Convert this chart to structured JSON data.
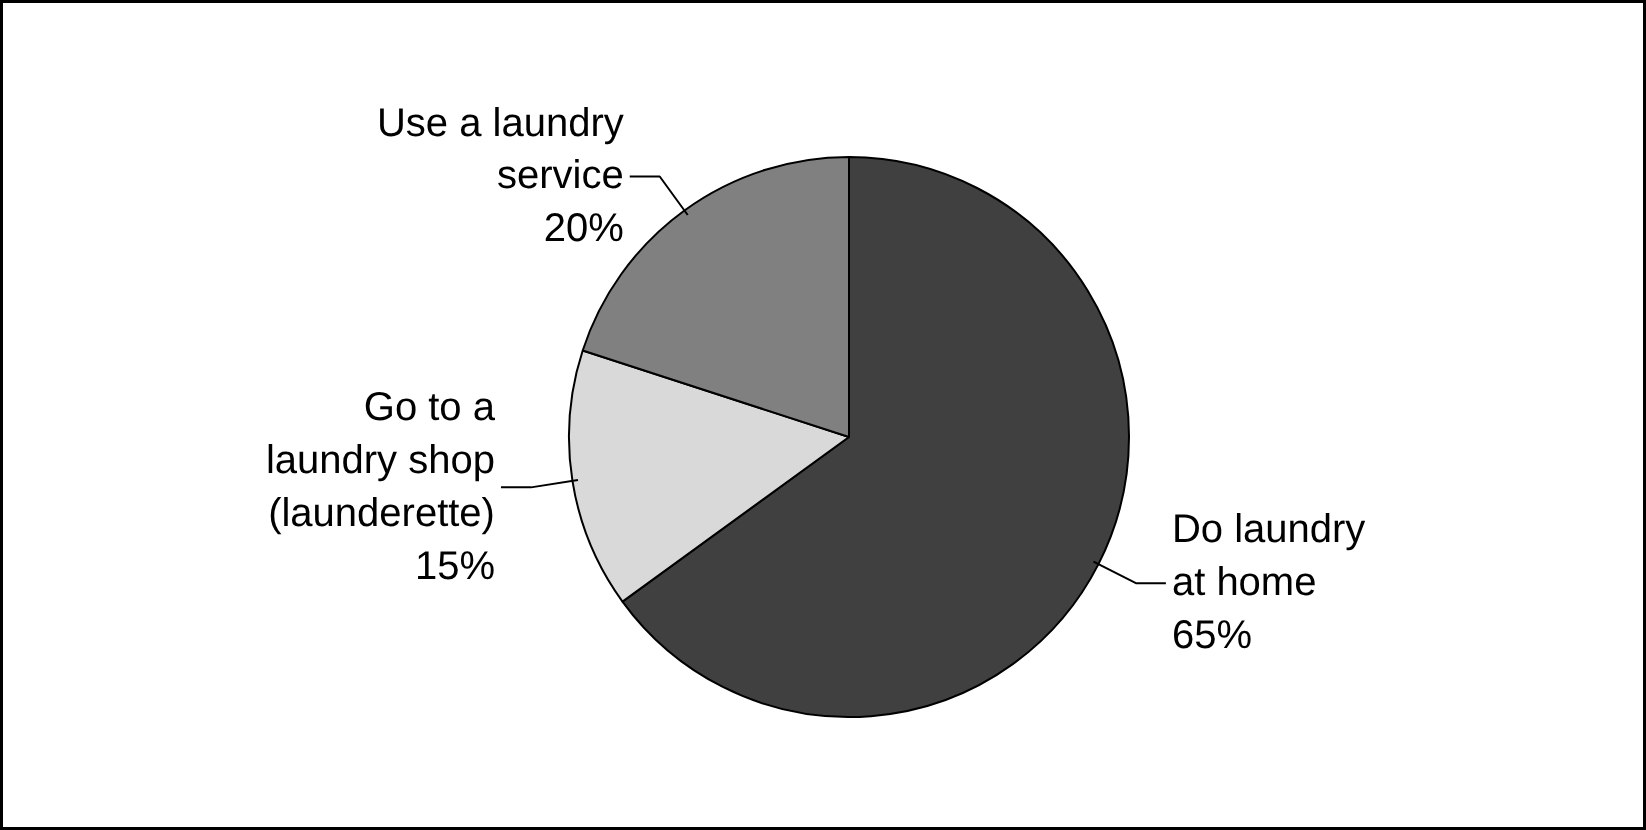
{
  "chart_data": {
    "type": "pie",
    "categories": [
      "Do laundry\nat home",
      "Go to a\nlaundry shop\n(launderette)",
      "Use a laundry\nservice"
    ],
    "values": [
      65,
      15,
      20
    ],
    "colors": [
      "#404040",
      "#d9d9d9",
      "#808080"
    ],
    "value_labels": [
      "65%",
      "15%",
      "20%"
    ]
  }
}
